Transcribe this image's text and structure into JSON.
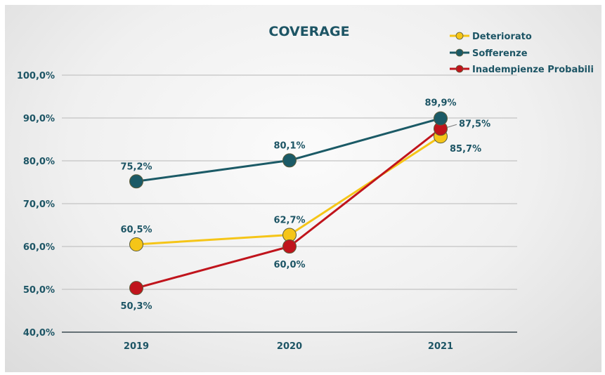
{
  "chart_data": {
    "type": "line",
    "title": "COVERAGE",
    "categories": [
      "2019",
      "2020",
      "2021"
    ],
    "ylim": [
      40,
      100
    ],
    "y_ticks": [
      "40,0%",
      "50,0%",
      "60,0%",
      "70,0%",
      "80,0%",
      "90,0%",
      "100,0%"
    ],
    "grid": true,
    "legend_position": "top-right",
    "series": [
      {
        "name": "Deteriorato",
        "color": "#f5c518",
        "values": [
          60.5,
          62.7,
          85.7
        ],
        "labels": [
          "60,5%",
          "62,7%",
          "85,7%"
        ]
      },
      {
        "name": "Sofferenze",
        "color": "#1b5a66",
        "values": [
          75.2,
          80.1,
          89.9
        ],
        "labels": [
          "75,2%",
          "80,1%",
          "89,9%"
        ]
      },
      {
        "name": "Inadempienze Probabili",
        "color": "#c0141c",
        "values": [
          50.3,
          60.0,
          87.5
        ],
        "labels": [
          "50,3%",
          "60,0%",
          "87,5%"
        ]
      }
    ]
  }
}
